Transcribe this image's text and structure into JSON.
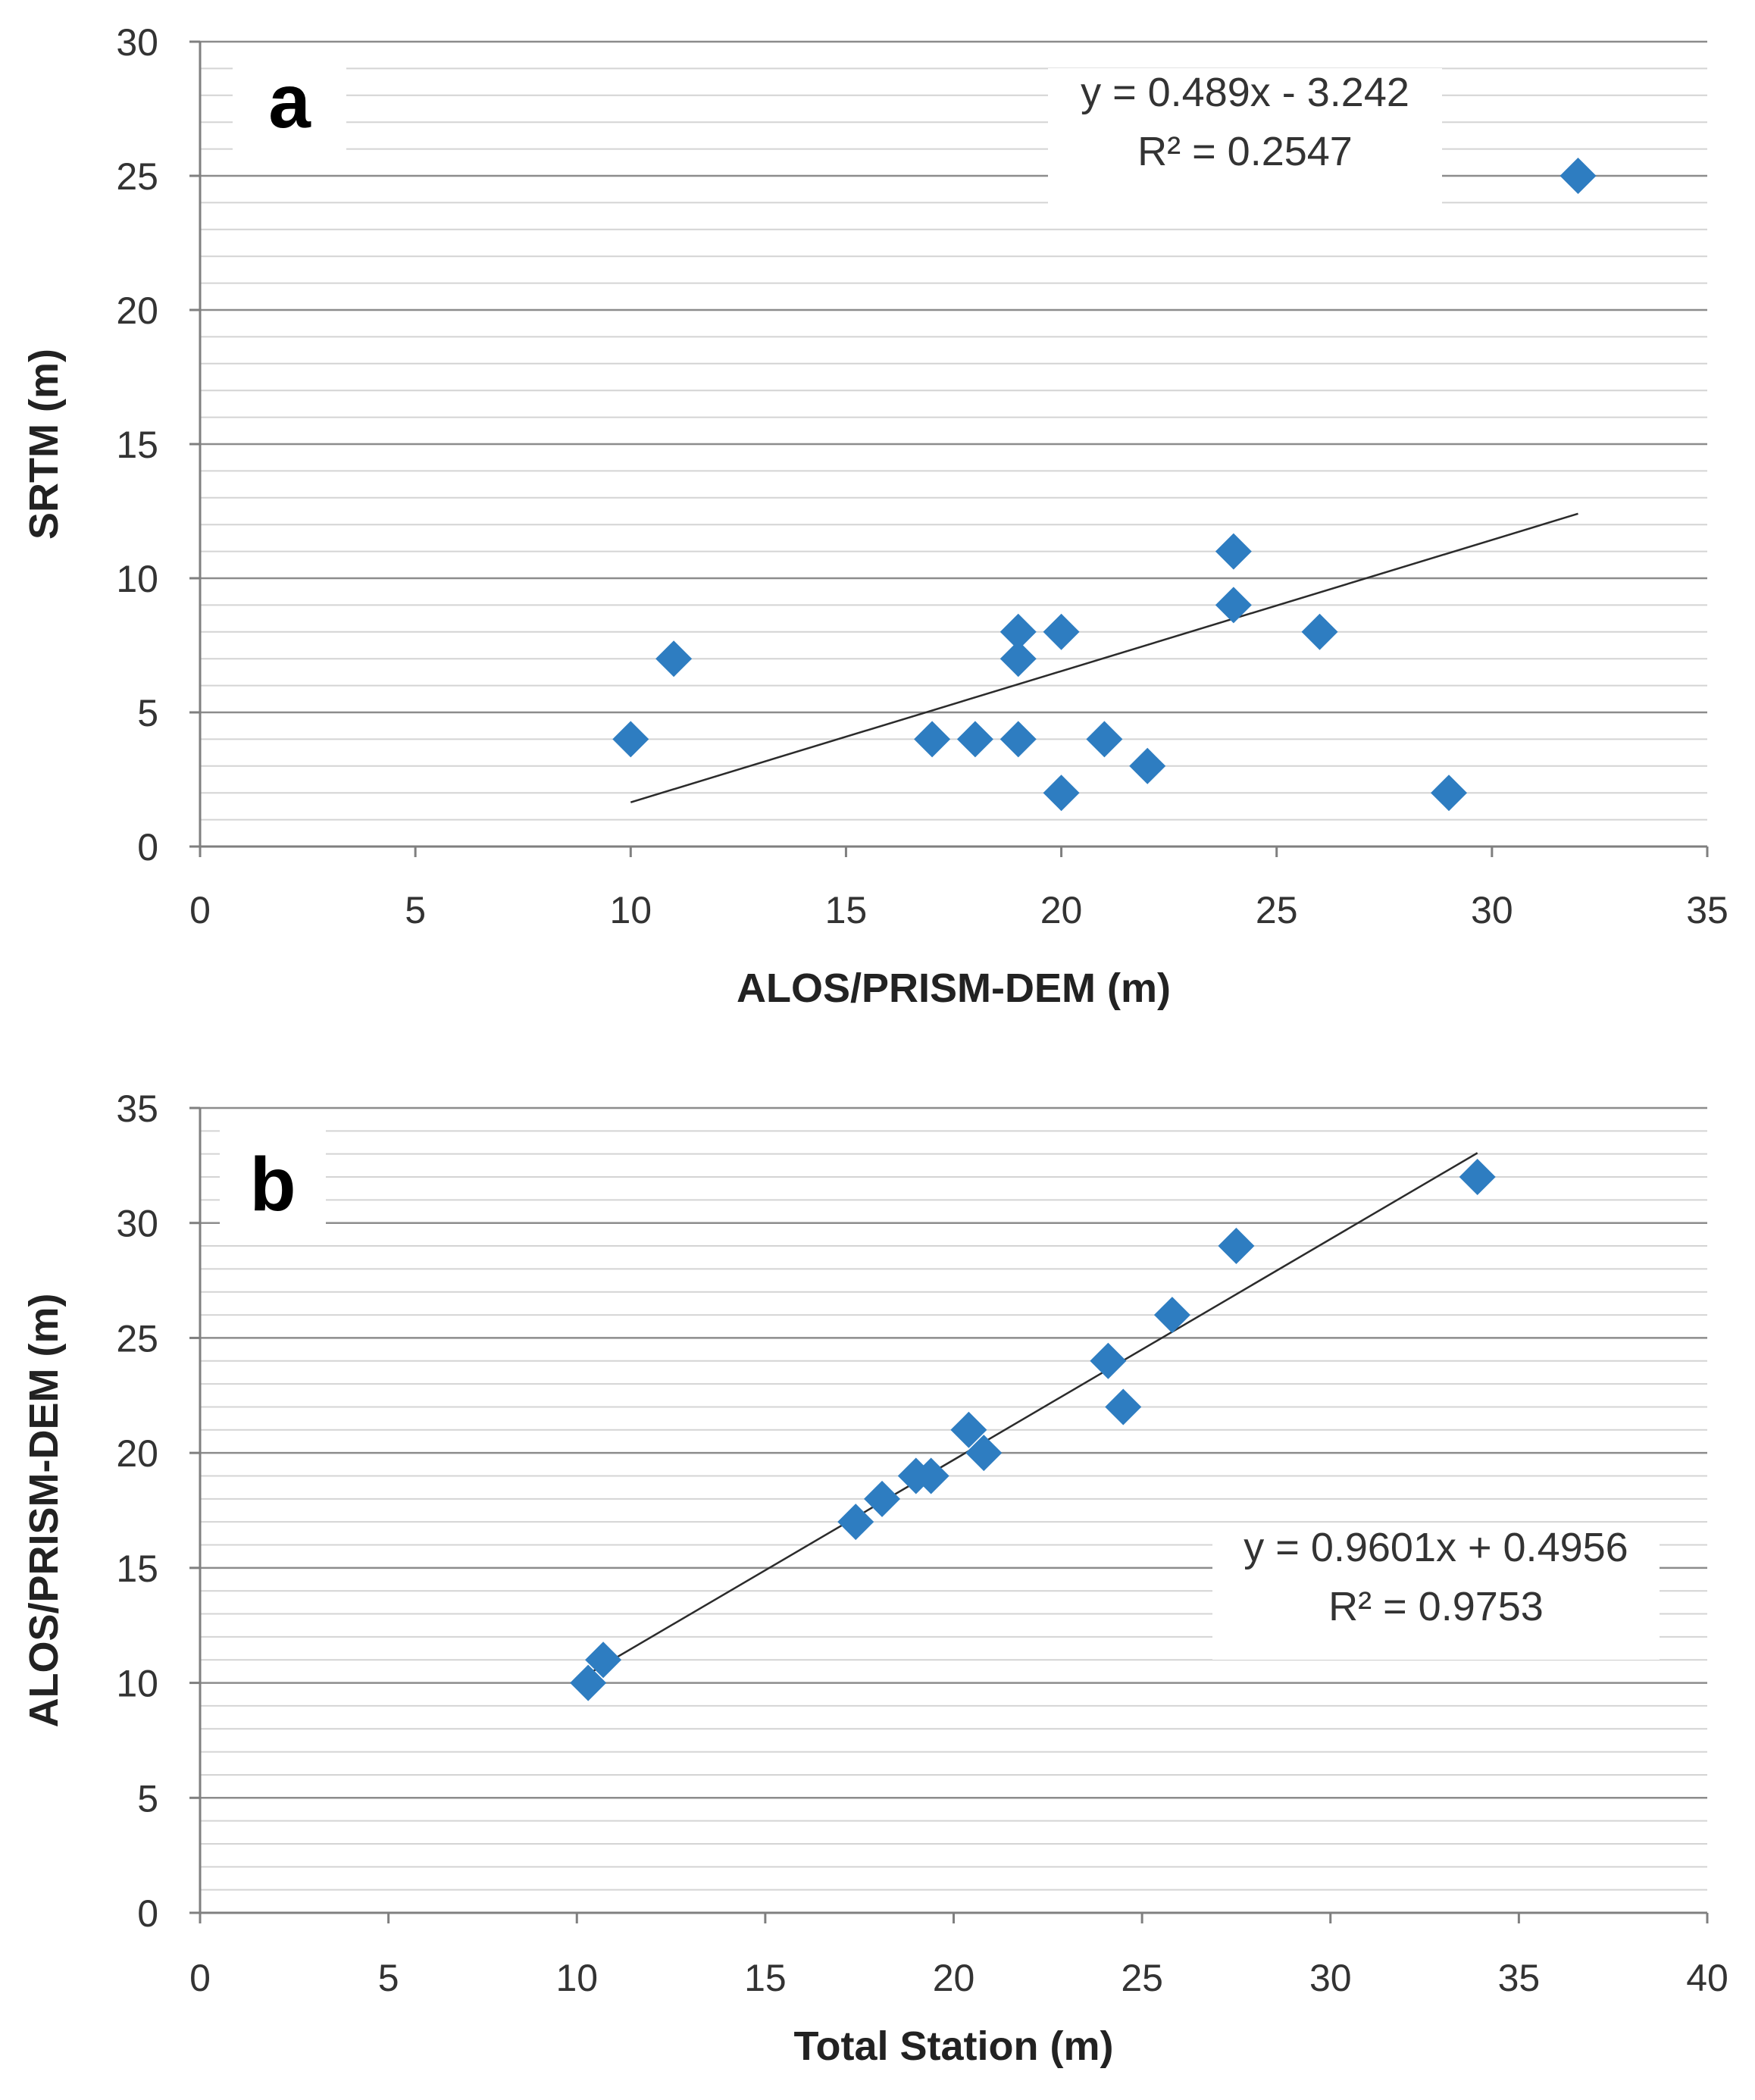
{
  "chart_data": [
    {
      "type": "scatter",
      "panel_label": "a",
      "xlabel": "ALOS/PRISM-DEM (m)",
      "ylabel": "SRTM (m)",
      "xlim": [
        0,
        35
      ],
      "ylim": [
        0,
        30
      ],
      "xticks": [
        "0",
        "5",
        "10",
        "15",
        "20",
        "25",
        "30",
        "35"
      ],
      "yticks": [
        "0",
        "5",
        "10",
        "15",
        "20",
        "25",
        "30"
      ],
      "grid": "horizontal major and minor gridlines",
      "marker": "diamond",
      "color": "#2E7DC1",
      "points": [
        {
          "x": 10,
          "y": 4
        },
        {
          "x": 11,
          "y": 7
        },
        {
          "x": 17,
          "y": 4
        },
        {
          "x": 18,
          "y": 4
        },
        {
          "x": 19,
          "y": 4
        },
        {
          "x": 19,
          "y": 7
        },
        {
          "x": 19,
          "y": 8
        },
        {
          "x": 20,
          "y": 8
        },
        {
          "x": 20,
          "y": 2
        },
        {
          "x": 21,
          "y": 4
        },
        {
          "x": 22,
          "y": 3
        },
        {
          "x": 24,
          "y": 11
        },
        {
          "x": 24,
          "y": 9
        },
        {
          "x": 26,
          "y": 8
        },
        {
          "x": 29,
          "y": 2
        },
        {
          "x": 32,
          "y": 25
        }
      ],
      "trendline": {
        "slope": 0.489,
        "intercept": -3.242,
        "x_range": [
          10,
          32
        ]
      },
      "equation": "y = 0.489x - 3.242",
      "r_squared": "R² = 0.2547",
      "equation_position": "top-right"
    },
    {
      "type": "scatter",
      "panel_label": "b",
      "xlabel": "Total Station (m)",
      "ylabel": "ALOS/PRISM-DEM (m)",
      "xlim": [
        0,
        40
      ],
      "ylim": [
        0,
        35
      ],
      "xticks": [
        "0",
        "5",
        "10",
        "15",
        "20",
        "25",
        "30",
        "35",
        "40"
      ],
      "yticks": [
        "0",
        "5",
        "10",
        "15",
        "20",
        "25",
        "30",
        "35"
      ],
      "grid": "horizontal major and minor gridlines",
      "marker": "diamond",
      "color": "#2E7DC1",
      "points": [
        {
          "x": 10.3,
          "y": 10
        },
        {
          "x": 10.7,
          "y": 11
        },
        {
          "x": 17.4,
          "y": 17
        },
        {
          "x": 18.1,
          "y": 18
        },
        {
          "x": 19.0,
          "y": 19
        },
        {
          "x": 19.4,
          "y": 19
        },
        {
          "x": 20.4,
          "y": 21
        },
        {
          "x": 20.8,
          "y": 20
        },
        {
          "x": 24.1,
          "y": 24
        },
        {
          "x": 24.5,
          "y": 22
        },
        {
          "x": 25.8,
          "y": 26
        },
        {
          "x": 27.5,
          "y": 29
        },
        {
          "x": 33.9,
          "y": 32
        }
      ],
      "trendline": {
        "slope": 0.9601,
        "intercept": 0.4956,
        "x_range": [
          10.3,
          33.9
        ]
      },
      "equation": "y = 0.9601x + 0.4956",
      "r_squared": "R² = 0.9753",
      "equation_position": "right"
    }
  ]
}
